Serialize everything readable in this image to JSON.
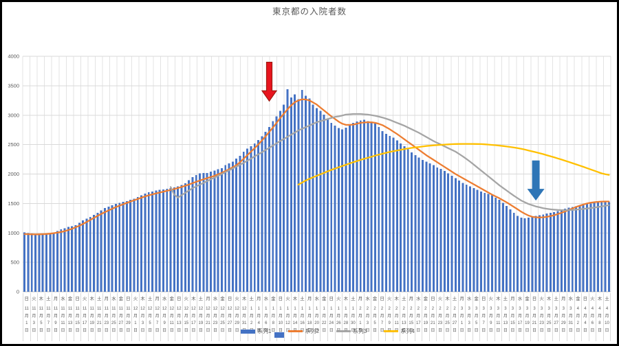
{
  "palette": {
    "bar_blue": "#4472c4",
    "line_orange": "#ed7d31",
    "line_gray": "#a5a5a5",
    "line_yellow": "#ffc000",
    "arrow_red": "#e8141e",
    "arrow_red_outline": "#9e1a10",
    "arrow_blue": "#2e75b6",
    "text_gray": "#595959",
    "gridline": "#d9d9d9",
    "gridline_vertical": "#e3e3e3",
    "axis_line": "#bfbfbf",
    "frame_border": "#000000"
  },
  "legend": {
    "items": [
      {
        "label": "系列1",
        "type": "bar",
        "color": "#4472c4"
      },
      {
        "label": "系列2",
        "type": "line",
        "color": "#ed7d31"
      },
      {
        "label": "系列3",
        "type": "line",
        "color": "#a5a5a5"
      },
      {
        "label": "系列4",
        "type": "line",
        "color": "#ffc000"
      }
    ]
  },
  "chart_data": {
    "type": "bar",
    "combo": "daily bars with 3 line overlays",
    "title": "東京都の入院者数",
    "xlabel": "",
    "ylabel": "",
    "ylim": [
      0,
      4000
    ],
    "yticks": [
      0,
      500,
      1000,
      1500,
      2000,
      2500,
      3000,
      3500,
      4000
    ],
    "grid": "horizontal and vertical major gridlines",
    "legend_position": "bottom, overlapping x-axis labels",
    "n_days": 161,
    "x_first_label": "11月1日",
    "x_last_label": "4月10日",
    "x_tick_every_days": 2,
    "x_tick_labels": [
      [
        "日",
        "11月1日"
      ],
      [
        "火",
        "11月3日"
      ],
      [
        "木",
        "11月5日"
      ],
      [
        "土",
        "11月7日"
      ],
      [
        "月",
        "11月9日"
      ],
      [
        "水",
        "11月11日"
      ],
      [
        "金",
        "11月13日"
      ],
      [
        "日",
        "11月15日"
      ],
      [
        "火",
        "11月17日"
      ],
      [
        "木",
        "11月19日"
      ],
      [
        "土",
        "11月21日"
      ],
      [
        "月",
        "11月23日"
      ],
      [
        "水",
        "11月25日"
      ],
      [
        "金",
        "11月27日"
      ],
      [
        "日",
        "11月29日"
      ],
      [
        "火",
        "12月1日"
      ],
      [
        "木",
        "12月3日"
      ],
      [
        "土",
        "12月5日"
      ],
      [
        "月",
        "12月7日"
      ],
      [
        "水",
        "12月9日"
      ],
      [
        "金",
        "12月11日"
      ],
      [
        "日",
        "12月13日"
      ],
      [
        "火",
        "12月15日"
      ],
      [
        "木",
        "12月17日"
      ],
      [
        "土",
        "12月19日"
      ],
      [
        "月",
        "12月21日"
      ],
      [
        "水",
        "12月23日"
      ],
      [
        "金",
        "12月25日"
      ],
      [
        "日",
        "12月27日"
      ],
      [
        "火",
        "12月29日"
      ],
      [
        "木",
        "12月31日"
      ],
      [
        "土",
        "1月2日"
      ],
      [
        "月",
        "1月4日"
      ],
      [
        "水",
        "1月6日"
      ],
      [
        "金",
        "1月8日"
      ],
      [
        "日",
        "1月10日"
      ],
      [
        "火",
        "1月12日"
      ],
      [
        "木",
        "1月14日"
      ],
      [
        "土",
        "1月16日"
      ],
      [
        "月",
        "1月18日"
      ],
      [
        "水",
        "1月20日"
      ],
      [
        "金",
        "1月22日"
      ],
      [
        "日",
        "1月24日"
      ],
      [
        "火",
        "1月26日"
      ],
      [
        "木",
        "1月28日"
      ],
      [
        "土",
        "1月30日"
      ],
      [
        "月",
        "2月1日"
      ],
      [
        "水",
        "2月3日"
      ],
      [
        "金",
        "2月5日"
      ],
      [
        "日",
        "2月7日"
      ],
      [
        "火",
        "2月9日"
      ],
      [
        "木",
        "2月11日"
      ],
      [
        "土",
        "2月13日"
      ],
      [
        "月",
        "2月15日"
      ],
      [
        "水",
        "2月17日"
      ],
      [
        "金",
        "2月19日"
      ],
      [
        "日",
        "2月21日"
      ],
      [
        "火",
        "2月23日"
      ],
      [
        "木",
        "2月25日"
      ],
      [
        "土",
        "2月27日"
      ],
      [
        "月",
        "3月1日"
      ],
      [
        "水",
        "3月3日"
      ],
      [
        "金",
        "3月5日"
      ],
      [
        "日",
        "3月7日"
      ],
      [
        "火",
        "3月9日"
      ],
      [
        "木",
        "3月11日"
      ],
      [
        "土",
        "3月13日"
      ],
      [
        "月",
        "3月15日"
      ],
      [
        "水",
        "3月17日"
      ],
      [
        "金",
        "3月19日"
      ],
      [
        "日",
        "3月21日"
      ],
      [
        "火",
        "3月23日"
      ],
      [
        "木",
        "3月25日"
      ],
      [
        "土",
        "3月27日"
      ],
      [
        "月",
        "3月29日"
      ],
      [
        "水",
        "3月31日"
      ],
      [
        "金",
        "4月2日"
      ],
      [
        "日",
        "4月4日"
      ],
      [
        "火",
        "4月6日"
      ],
      [
        "木",
        "4月8日"
      ],
      [
        "土",
        "4月10日"
      ]
    ],
    "series": [
      {
        "name": "系列1",
        "type": "bar",
        "color": "#4472c4",
        "start_day": 0,
        "values": [
          1010,
          1000,
          990,
          985,
          985,
          980,
          975,
          990,
          1005,
          1030,
          1060,
          1080,
          1100,
          1115,
          1130,
          1170,
          1210,
          1240,
          1270,
          1305,
          1340,
          1380,
          1420,
          1445,
          1470,
          1490,
          1510,
          1525,
          1540,
          1560,
          1580,
          1610,
          1640,
          1665,
          1690,
          1705,
          1720,
          1730,
          1740,
          1750,
          1760,
          1775,
          1790,
          1815,
          1840,
          1895,
          1950,
          1980,
          2010,
          2015,
          2020,
          2040,
          2060,
          2080,
          2100,
          2150,
          2180,
          2210,
          2260,
          2310,
          2380,
          2430,
          2470,
          2520,
          2580,
          2640,
          2720,
          2800,
          2900,
          2980,
          3070,
          3180,
          3440,
          3300,
          3350,
          3270,
          3430,
          3330,
          3280,
          3180,
          3120,
          3070,
          3010,
          2940,
          2870,
          2820,
          2780,
          2760,
          2790,
          2830,
          2870,
          2890,
          2910,
          2920,
          2900,
          2890,
          2860,
          2800,
          2730,
          2680,
          2650,
          2620,
          2570,
          2520,
          2470,
          2420,
          2370,
          2320,
          2280,
          2240,
          2210,
          2180,
          2150,
          2110,
          2090,
          2050,
          2010,
          1970,
          1930,
          1890,
          1850,
          1820,
          1790,
          1760,
          1730,
          1700,
          1680,
          1660,
          1640,
          1600,
          1560,
          1510,
          1460,
          1400,
          1340,
          1290,
          1260,
          1250,
          1260,
          1280,
          1290,
          1300,
          1310,
          1330,
          1340,
          1350,
          1370,
          1390,
          1410,
          1430,
          1440,
          1450,
          1460,
          1470,
          1490,
          1500,
          1510,
          1520,
          1530,
          1540,
          1520
        ]
      },
      {
        "name": "系列2",
        "type": "line",
        "color": "#ed7d31",
        "start_day": 0,
        "values": [
          980,
          978,
          976,
          975,
          976,
          978,
          982,
          988,
          996,
          1005,
          1016,
          1030,
          1048,
          1070,
          1095,
          1122,
          1152,
          1185,
          1220,
          1255,
          1290,
          1322,
          1352,
          1382,
          1410,
          1438,
          1462,
          1486,
          1510,
          1532,
          1554,
          1576,
          1598,
          1620,
          1638,
          1655,
          1670,
          1685,
          1700,
          1715,
          1730,
          1745,
          1762,
          1780,
          1800,
          1822,
          1845,
          1868,
          1890,
          1910,
          1930,
          1950,
          1970,
          1995,
          2020,
          2050,
          2080,
          2115,
          2150,
          2200,
          2260,
          2320,
          2380,
          2440,
          2500,
          2570,
          2640,
          2715,
          2790,
          2870,
          2950,
          3025,
          3100,
          3165,
          3220,
          3250,
          3270,
          3265,
          3250,
          3215,
          3180,
          3130,
          3080,
          3030,
          2980,
          2935,
          2890,
          2855,
          2835,
          2835,
          2840,
          2855,
          2870,
          2875,
          2880,
          2878,
          2870,
          2852,
          2830,
          2795,
          2760,
          2720,
          2680,
          2635,
          2590,
          2545,
          2500,
          2455,
          2410,
          2365,
          2320,
          2280,
          2240,
          2200,
          2160,
          2120,
          2080,
          2040,
          2000,
          1965,
          1930,
          1895,
          1860,
          1825,
          1790,
          1755,
          1720,
          1685,
          1650,
          1620,
          1590,
          1555,
          1520,
          1480,
          1440,
          1400,
          1360,
          1325,
          1295,
          1275,
          1265,
          1262,
          1265,
          1272,
          1285,
          1300,
          1320,
          1342,
          1365,
          1390,
          1415,
          1440,
          1462,
          1482,
          1500,
          1512,
          1522,
          1528,
          1532,
          1533,
          1533
        ]
      },
      {
        "name": "系列3",
        "type": "line",
        "color": "#a5a5a5",
        "start_day": 40,
        "values": [
          1780,
          1650,
          1600,
          1640,
          1680,
          1720,
          1760,
          1790,
          1820,
          1850,
          1880,
          1910,
          1940,
          1970,
          2000,
          2030,
          2062,
          2094,
          2126,
          2158,
          2190,
          2226,
          2262,
          2298,
          2334,
          2370,
          2408,
          2446,
          2484,
          2522,
          2560,
          2596,
          2632,
          2668,
          2704,
          2740,
          2768,
          2796,
          2824,
          2852,
          2880,
          2898,
          2916,
          2934,
          2952,
          2970,
          2980,
          2995,
          3010,
          3015,
          3020,
          3020,
          3020,
          3015,
          3010,
          3000,
          2990,
          2975,
          2960,
          2940,
          2920,
          2895,
          2870,
          2845,
          2820,
          2790,
          2760,
          2730,
          2700,
          2665,
          2630,
          2595,
          2560,
          2530,
          2500,
          2470,
          2440,
          2410,
          2380,
          2340,
          2300,
          2255,
          2210,
          2160,
          2110,
          2060,
          2010,
          1960,
          1910,
          1860,
          1810,
          1765,
          1720,
          1675,
          1630,
          1590,
          1550,
          1520,
          1490,
          1470,
          1450,
          1435,
          1420,
          1410,
          1400,
          1395,
          1390,
          1388,
          1385,
          1388,
          1390,
          1395,
          1400,
          1408,
          1415,
          1422,
          1430,
          1440,
          1450,
          1460,
          1470
        ]
      },
      {
        "name": "系列4",
        "type": "line",
        "color": "#ffc000",
        "start_day": 75,
        "values": [
          1820,
          1855,
          1890,
          1920,
          1945,
          1970,
          1995,
          2020,
          2045,
          2070,
          2092,
          2114,
          2136,
          2158,
          2180,
          2200,
          2220,
          2240,
          2258,
          2276,
          2294,
          2312,
          2330,
          2345,
          2360,
          2375,
          2388,
          2400,
          2412,
          2424,
          2434,
          2444,
          2452,
          2460,
          2468,
          2476,
          2482,
          2488,
          2492,
          2496,
          2500,
          2504,
          2507,
          2510,
          2511,
          2512,
          2512,
          2512,
          2511,
          2510,
          2508,
          2505,
          2500,
          2495,
          2490,
          2483,
          2476,
          2468,
          2460,
          2450,
          2440,
          2428,
          2415,
          2400,
          2385,
          2370,
          2354,
          2338,
          2320,
          2302,
          2284,
          2265,
          2246,
          2226,
          2206,
          2186,
          2165,
          2144,
          2122,
          2100,
          2078,
          2056,
          2034,
          2012,
          1996,
          1985
        ]
      }
    ],
    "annotations": [
      {
        "name": "red-arrow",
        "shape": "down-arrow",
        "day_index": 67,
        "date": "1月7日",
        "from_value": 3900,
        "to_value": 3240,
        "fill": "#e8141e",
        "outline": "#9e1a10",
        "shaft_w": 8,
        "head_w": 21,
        "head_h": 15
      },
      {
        "name": "blue-arrow",
        "shape": "down-arrow",
        "day_index": 140,
        "date": "3月21日",
        "from_value": 2230,
        "to_value": 1550,
        "fill": "#2e75b6",
        "outline": "none",
        "shaft_w": 11,
        "head_w": 25,
        "head_h": 17
      }
    ]
  }
}
